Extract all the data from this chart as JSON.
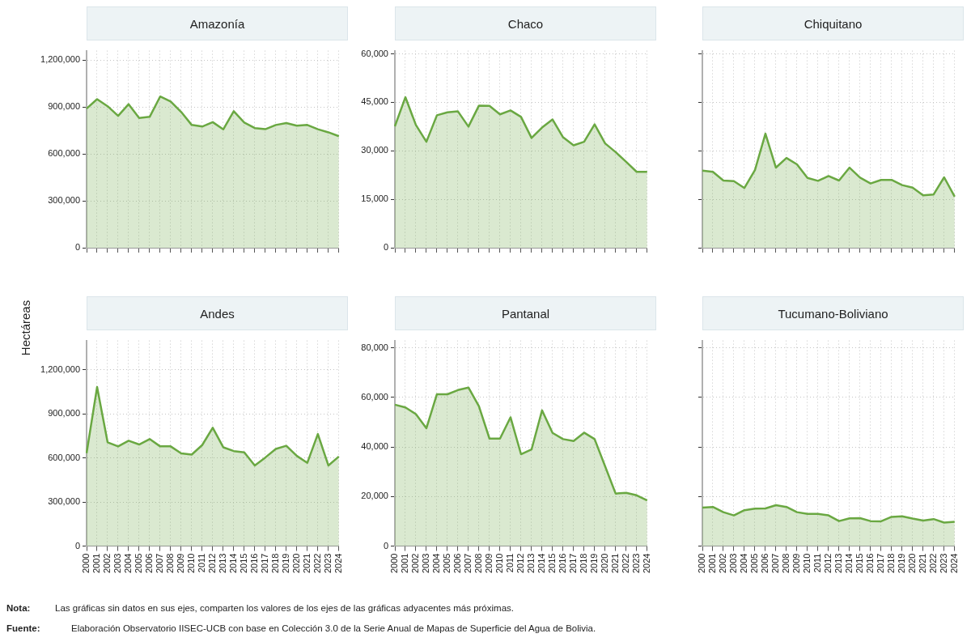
{
  "chart_data": [
    {
      "type": "area",
      "title": "Amazonía",
      "ylabel": "Hectáreas",
      "annotations": [
        "Nota: Las gráficas sin datos en sus ejes, comparten los valores de los ejes de las gráficas adyacentes más próximas.",
        "Fuente: Elaboración Observatorio IISEC-UCB con base en Colección 3.0 de la Serie Anual de Mapas de Superficie del Agua de Bolivia."
      ],
      "categories": [
        "2000",
        "2001",
        "2002",
        "2003",
        "2004",
        "2005",
        "2006",
        "2007",
        "2008",
        "2009",
        "2010",
        "2011",
        "2012",
        "2013",
        "2014",
        "2015",
        "2016",
        "2017",
        "2018",
        "2019",
        "2020",
        "2021",
        "2022",
        "2023",
        "2024"
      ],
      "series": [
        {
          "color": "#6aa842",
          "values": [
            890000,
            950000,
            905000,
            843000,
            918000,
            830000,
            837000,
            967000,
            935000,
            868000,
            785000,
            775000,
            803000,
            757000,
            873000,
            800000,
            765000,
            758000,
            785000,
            797000,
            780000,
            785000,
            758000,
            738000,
            713000
          ]
        }
      ],
      "ylim": [
        0,
        1260000
      ],
      "yticks": [
        0,
        {
          "value": 300000,
          "label": "300,000"
        },
        {
          "value": 600000,
          "label": "600,000"
        },
        {
          "value": 900000,
          "label": "900,000"
        },
        {
          "value": 1200000,
          "label": "1,200,000"
        }
      ],
      "grid": true,
      "tick_labels": "y"
    },
    {
      "type": "area",
      "title": "Chaco",
      "categories": [
        "2000",
        "2001",
        "2002",
        "2003",
        "2004",
        "2005",
        "2006",
        "2007",
        "2008",
        "2009",
        "2010",
        "2011",
        "2012",
        "2013",
        "2014",
        "2015",
        "2016",
        "2017",
        "2018",
        "2019",
        "2020",
        "2021",
        "2022",
        "2023",
        "2024"
      ],
      "series": [
        {
          "color": "#6aa842",
          "values": [
            37600,
            46600,
            38000,
            32800,
            41000,
            41900,
            42200,
            37500,
            44000,
            43900,
            41300,
            42500,
            40500,
            34000,
            37200,
            39700,
            34200,
            31700,
            32800,
            38200,
            32300,
            29600,
            26600,
            23500,
            23500
          ]
        }
      ],
      "ylim": [
        0,
        61000
      ],
      "yticks": [
        0,
        {
          "value": 15000,
          "label": "15,000"
        },
        {
          "value": 30000,
          "label": "30,000"
        },
        {
          "value": 45000,
          "label": "45,000"
        },
        {
          "value": 60000,
          "label": "60,000"
        }
      ],
      "grid": true,
      "tick_labels": "y"
    },
    {
      "type": "area",
      "title": "Chiquitano",
      "categories": [
        "2000",
        "2001",
        "2002",
        "2003",
        "2004",
        "2005",
        "2006",
        "2007",
        "2008",
        "2009",
        "2010",
        "2011",
        "2012",
        "2013",
        "2014",
        "2015",
        "2016",
        "2017",
        "2018",
        "2019",
        "2020",
        "2021",
        "2022",
        "2023",
        "2024"
      ],
      "series": [
        {
          "color": "#6aa842",
          "values": [
            23900,
            23500,
            20800,
            20600,
            18500,
            24000,
            35300,
            24800,
            27800,
            25800,
            21600,
            20700,
            22200,
            20800,
            24800,
            21700,
            19900,
            21000,
            21000,
            19400,
            18600,
            16200,
            16500,
            21800,
            15800
          ]
        }
      ],
      "ylim": [
        0,
        61000
      ],
      "yticks": [
        0,
        15000,
        30000,
        45000,
        60000
      ],
      "grid": true,
      "tick_labels": false
    },
    {
      "type": "area",
      "title": "Andes",
      "categories": [
        "2000",
        "2001",
        "2002",
        "2003",
        "2004",
        "2005",
        "2006",
        "2007",
        "2008",
        "2009",
        "2010",
        "2011",
        "2012",
        "2013",
        "2014",
        "2015",
        "2016",
        "2017",
        "2018",
        "2019",
        "2020",
        "2021",
        "2022",
        "2023",
        "2024"
      ],
      "series": [
        {
          "color": "#6aa842",
          "values": [
            633000,
            1083000,
            707000,
            679000,
            718000,
            692000,
            729000,
            679000,
            679000,
            631000,
            623000,
            688000,
            806000,
            673000,
            647000,
            638000,
            549000,
            603000,
            662000,
            683000,
            614000,
            567000,
            763000,
            549000,
            610000
          ]
        }
      ],
      "ylim": [
        0,
        1400000
      ],
      "yticks": [
        0,
        {
          "value": 300000,
          "label": "300,000"
        },
        {
          "value": 600000,
          "label": "600,000"
        },
        {
          "value": 900000,
          "label": "900,000"
        },
        {
          "value": 1200000,
          "label": "1,200,000"
        }
      ],
      "grid": true
    },
    {
      "type": "area",
      "title": "Pantanal",
      "categories": [
        "2000",
        "2001",
        "2002",
        "2003",
        "2004",
        "2005",
        "2006",
        "2007",
        "2008",
        "2009",
        "2010",
        "2011",
        "2012",
        "2013",
        "2014",
        "2015",
        "2016",
        "2017",
        "2018",
        "2019",
        "2020",
        "2021",
        "2022",
        "2023",
        "2024"
      ],
      "series": [
        {
          "color": "#6aa842",
          "values": [
            57100,
            56000,
            53300,
            47600,
            61300,
            61300,
            63000,
            64000,
            56400,
            43400,
            43400,
            52000,
            37100,
            39000,
            54800,
            45700,
            43200,
            42400,
            45800,
            43200,
            32200,
            21200,
            21500,
            20500,
            18400
          ]
        }
      ],
      "ylim": [
        0,
        83000
      ],
      "yticks": [
        0,
        {
          "value": 20000,
          "label": "20,000"
        },
        {
          "value": 40000,
          "label": "40,000"
        },
        {
          "value": 60000,
          "label": "60,000"
        },
        {
          "value": 80000,
          "label": "80,000"
        }
      ],
      "grid": true
    },
    {
      "type": "area",
      "title": "Tucumano-Boliviano",
      "categories": [
        "2000",
        "2001",
        "2002",
        "2003",
        "2004",
        "2005",
        "2006",
        "2007",
        "2008",
        "2009",
        "2010",
        "2011",
        "2012",
        "2013",
        "2014",
        "2015",
        "2016",
        "2017",
        "2018",
        "2019",
        "2020",
        "2021",
        "2022",
        "2023",
        "2024"
      ],
      "series": [
        {
          "color": "#6aa842",
          "values": [
            15500,
            15800,
            13700,
            12400,
            14500,
            15100,
            15200,
            16500,
            15800,
            13700,
            13000,
            13000,
            12400,
            10100,
            11200,
            11300,
            10100,
            10000,
            11800,
            12000,
            11100,
            10300,
            10900,
            9500,
            9800
          ]
        }
      ],
      "ylim": [
        0,
        83000
      ],
      "yticks": [
        0,
        20000,
        40000,
        60000,
        80000
      ],
      "grid": true,
      "tick_labels": "x"
    }
  ]
}
